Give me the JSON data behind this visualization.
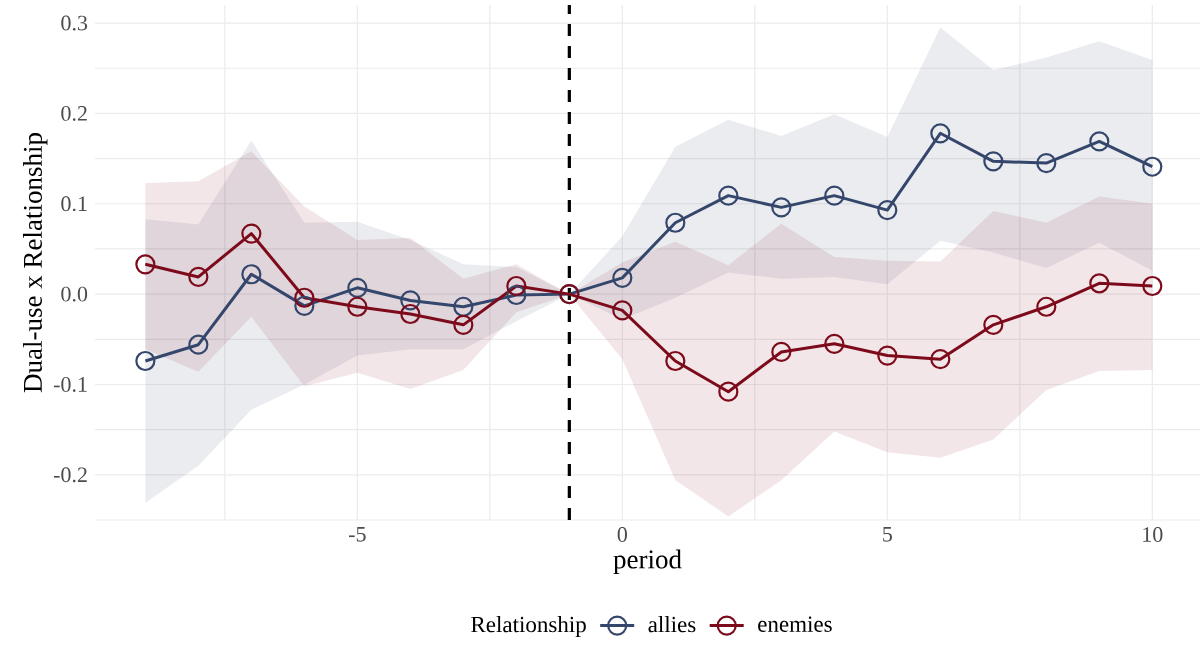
{
  "chart_data": {
    "type": "line",
    "xlabel": "period",
    "ylabel": "Dual-use x Relationship",
    "legend_title": "Relationship",
    "x": [
      -9,
      -8,
      -7,
      -6,
      -5,
      -4,
      -3,
      -2,
      -1,
      0,
      1,
      2,
      3,
      4,
      5,
      6,
      7,
      8,
      9,
      10
    ],
    "series": [
      {
        "name": "allies",
        "color": "#34466b",
        "values": [
          -0.074,
          -0.056,
          0.022,
          -0.013,
          0.007,
          -0.007,
          -0.014,
          -0.001,
          0,
          0.018,
          0.079,
          0.109,
          0.096,
          0.109,
          0.093,
          0.178,
          0.147,
          0.145,
          0.169,
          0.141
        ],
        "lower": [
          -0.231,
          -0.19,
          -0.128,
          -0.1,
          -0.068,
          -0.061,
          -0.061,
          -0.03,
          0,
          -0.028,
          -0.004,
          0.024,
          0.017,
          0.019,
          0.011,
          0.059,
          0.046,
          0.029,
          0.057,
          0.026
        ],
        "upper": [
          0.083,
          0.077,
          0.17,
          0.079,
          0.08,
          0.06,
          0.033,
          0.03,
          0,
          0.064,
          0.163,
          0.193,
          0.175,
          0.199,
          0.174,
          0.295,
          0.248,
          0.262,
          0.28,
          0.259
        ]
      },
      {
        "name": "enemies",
        "color": "#7d0a1a",
        "values": [
          0.033,
          0.019,
          0.067,
          -0.004,
          -0.014,
          -0.022,
          -0.034,
          0.009,
          0,
          -0.018,
          -0.074,
          -0.108,
          -0.064,
          -0.055,
          -0.068,
          -0.072,
          -0.034,
          -0.014,
          0.012,
          0.009
        ],
        "lower": [
          -0.061,
          -0.086,
          -0.025,
          -0.102,
          -0.087,
          -0.105,
          -0.084,
          -0.02,
          0,
          -0.072,
          -0.206,
          -0.246,
          -0.206,
          -0.152,
          -0.175,
          -0.181,
          -0.161,
          -0.106,
          -0.085,
          -0.084
        ],
        "upper": [
          0.123,
          0.125,
          0.158,
          0.097,
          0.06,
          0.062,
          0.017,
          0.033,
          0,
          0.035,
          0.058,
          0.032,
          0.078,
          0.041,
          0.037,
          0.036,
          0.092,
          0.079,
          0.108,
          0.1
        ]
      }
    ],
    "xlim": [
      -9.95,
      10.9
    ],
    "ylim": [
      -0.25,
      0.32
    ],
    "xticks": [
      {
        "value": -7.5,
        "label": null
      },
      -5,
      {
        "value": -2.5,
        "label": null
      },
      0,
      {
        "value": 2.5,
        "label": null
      },
      5,
      {
        "value": 7.5,
        "label": null
      },
      10
    ],
    "yticks": [
      {
        "value": -0.25,
        "label": null
      },
      {
        "value": -0.2,
        "label": "-0.2"
      },
      {
        "value": -0.15,
        "label": null
      },
      {
        "value": -0.1,
        "label": "-0.1"
      },
      {
        "value": -0.05,
        "label": null
      },
      {
        "value": 0,
        "label": "0.0"
      },
      {
        "value": 0.05,
        "label": null
      },
      {
        "value": 0.1,
        "label": "0.1"
      },
      {
        "value": 0.15,
        "label": null
      },
      {
        "value": 0.2,
        "label": "0.2"
      },
      {
        "value": 0.25,
        "label": null
      },
      {
        "value": 0.3,
        "label": "0.3"
      }
    ],
    "ref_lines": [
      {
        "axis": "x",
        "value": -1,
        "color": "#000000",
        "line_style": "dashed"
      }
    ],
    "grid": true,
    "legend": "bottom",
    "marker": "circle",
    "line_style": "solid"
  }
}
